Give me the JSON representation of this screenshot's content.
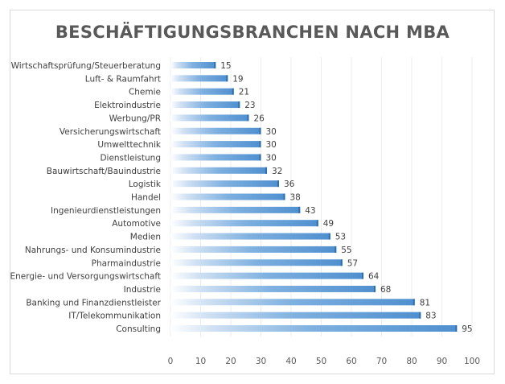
{
  "chart_data": {
    "type": "bar",
    "orientation": "horizontal",
    "title": "BESCHÄFTIGUNGSBRANCHEN NACH MBA",
    "xlabel": "",
    "ylabel": "",
    "xlim": [
      0,
      100
    ],
    "xticks": [
      0,
      10,
      20,
      30,
      40,
      50,
      60,
      70,
      80,
      90,
      100
    ],
    "grid": true,
    "color": "#5b9bd5",
    "categories": [
      "Wirtschaftsprüfung/Steuerberatung",
      "Luft- & Raumfahrt",
      "Chemie",
      "Elektroindustrie",
      "Werbung/PR",
      "Versicherungswirtschaft",
      "Umwelttechnik",
      "Dienstleistung",
      "Bauwirtschaft/Bauindustrie",
      "Logistik",
      "Handel",
      "Ingenieurdienstleistungen",
      "Automotive",
      "Medien",
      "Nahrungs- und Konsumindustrie",
      "Pharmaindustrie",
      "Energie- und Versorgungswirtschaft",
      "Industrie",
      "Banking und Finanzdienstleister",
      "IT/Telekommunikation",
      "Consulting"
    ],
    "values": [
      15,
      19,
      21,
      23,
      26,
      30,
      30,
      30,
      32,
      36,
      38,
      43,
      49,
      53,
      55,
      57,
      64,
      68,
      81,
      83,
      95
    ]
  }
}
